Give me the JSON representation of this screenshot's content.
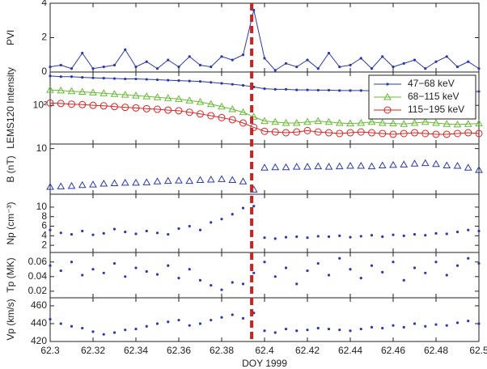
{
  "chart_data": [
    {
      "type": "line",
      "ylabel": "PVI",
      "xlim": [
        62.3,
        62.5
      ],
      "ylim": [
        0,
        4
      ],
      "yticks": [
        0,
        2,
        4
      ],
      "x": [
        62.3,
        62.305,
        62.31,
        62.315,
        62.32,
        62.325,
        62.33,
        62.335,
        62.34,
        62.345,
        62.35,
        62.355,
        62.36,
        62.365,
        62.37,
        62.375,
        62.38,
        62.385,
        62.39,
        62.395,
        62.4,
        62.405,
        62.41,
        62.415,
        62.42,
        62.425,
        62.43,
        62.435,
        62.44,
        62.445,
        62.45,
        62.455,
        62.46,
        62.465,
        62.47,
        62.475,
        62.48,
        62.485,
        62.49,
        62.495,
        62.5
      ],
      "series": [
        {
          "color": "#2a3aa8",
          "marker": "dot",
          "values": [
            0.3,
            0.4,
            0.2,
            1.1,
            0.2,
            0.3,
            0.4,
            1.3,
            0.3,
            0.6,
            0.2,
            0.7,
            0.3,
            0.9,
            0.4,
            0.3,
            0.9,
            0.7,
            1.0,
            3.6,
            0.8,
            0.1,
            0.5,
            0.3,
            0.7,
            0.2,
            1.1,
            0.3,
            0.4,
            0.8,
            0.2,
            0.9,
            0.3,
            0.5,
            0.7,
            0.2,
            0.6,
            0.9,
            0.3,
            0.6,
            0.2
          ]
        }
      ]
    },
    {
      "type": "line",
      "ylabel": "LEMS120 Intensity",
      "yscale": "log",
      "xlim": [
        62.3,
        62.5
      ],
      "ylim": [
        20,
        400
      ],
      "yticks": [
        {
          "value": 100,
          "label": "10²"
        }
      ],
      "legend": "upper right",
      "x": [
        62.3,
        62.305,
        62.31,
        62.315,
        62.32,
        62.325,
        62.33,
        62.335,
        62.34,
        62.345,
        62.35,
        62.355,
        62.36,
        62.365,
        62.37,
        62.375,
        62.38,
        62.385,
        62.39,
        62.395,
        62.4,
        62.405,
        62.41,
        62.415,
        62.42,
        62.425,
        62.43,
        62.435,
        62.44,
        62.445,
        62.45,
        62.455,
        62.46,
        62.465,
        62.47,
        62.475,
        62.48,
        62.485,
        62.49,
        62.495,
        62.5
      ],
      "series": [
        {
          "name": "47−68 keV",
          "color": "#2a3aa8",
          "marker": "dot",
          "values": [
            340,
            330,
            330,
            320,
            315,
            310,
            305,
            300,
            300,
            295,
            290,
            285,
            280,
            275,
            270,
            260,
            250,
            240,
            230,
            215,
            200,
            195,
            195,
            190,
            190,
            188,
            188,
            185,
            185,
            185,
            183,
            183,
            183,
            180,
            180,
            182,
            180,
            180,
            178,
            178,
            178
          ]
        },
        {
          "name": "68−115 keV",
          "color": "#66bb33",
          "marker": "triangle",
          "values": [
            190,
            185,
            180,
            175,
            170,
            165,
            160,
            155,
            150,
            145,
            140,
            135,
            130,
            122,
            115,
            105,
            95,
            85,
            75,
            62,
            52,
            50,
            48,
            48,
            50,
            52,
            50,
            48,
            47,
            48,
            50,
            48,
            47,
            46,
            48,
            50,
            48,
            46,
            45,
            46,
            47
          ]
        },
        {
          "name": "115−195 keV",
          "color": "#dd2222",
          "marker": "circle",
          "values": [
            110,
            108,
            105,
            103,
            100,
            98,
            95,
            92,
            90,
            87,
            85,
            82,
            80,
            75,
            70,
            65,
            60,
            55,
            48,
            40,
            34,
            33,
            32,
            33,
            35,
            33,
            32,
            31,
            32,
            33,
            32,
            31,
            30,
            31,
            32,
            31,
            30,
            30,
            31,
            32,
            31
          ]
        }
      ]
    },
    {
      "type": "scatter",
      "ylabel": "B (nT)",
      "xlim": [
        62.3,
        62.5
      ],
      "ylim": [
        0,
        11
      ],
      "yticks": [
        10
      ],
      "x": [
        62.3,
        62.305,
        62.31,
        62.315,
        62.32,
        62.325,
        62.33,
        62.335,
        62.34,
        62.345,
        62.35,
        62.355,
        62.36,
        62.365,
        62.37,
        62.375,
        62.38,
        62.385,
        62.39,
        62.395,
        62.4,
        62.405,
        62.41,
        62.415,
        62.42,
        62.425,
        62.43,
        62.435,
        62.44,
        62.445,
        62.45,
        62.455,
        62.46,
        62.465,
        62.47,
        62.475,
        62.48,
        62.485,
        62.49,
        62.495,
        62.5
      ],
      "series": [
        {
          "color": "#2a3aa8",
          "marker": "triangle",
          "values": [
            1.6,
            1.7,
            1.8,
            2.0,
            2.1,
            2.3,
            2.4,
            2.5,
            2.5,
            2.6,
            2.8,
            2.9,
            3.0,
            2.9,
            3.1,
            3.2,
            3.3,
            3.1,
            2.8,
            1.0,
            5.8,
            5.9,
            5.9,
            6.0,
            6.0,
            6.1,
            6.0,
            6.1,
            6.2,
            6.2,
            6.1,
            6.3,
            6.4,
            6.5,
            6.7,
            6.8,
            6.6,
            6.3,
            6.2,
            5.8,
            5.3
          ]
        }
      ]
    },
    {
      "type": "scatter",
      "ylabel": "Np (cm⁻³)",
      "xlim": [
        62.3,
        62.5
      ],
      "ylim": [
        0.5,
        12.7
      ],
      "yticks": [
        2,
        4,
        6,
        8,
        10
      ],
      "x": [
        62.3,
        62.305,
        62.31,
        62.315,
        62.32,
        62.325,
        62.33,
        62.335,
        62.34,
        62.345,
        62.35,
        62.355,
        62.36,
        62.365,
        62.37,
        62.375,
        62.38,
        62.385,
        62.39,
        62.395,
        62.4,
        62.405,
        62.41,
        62.415,
        62.42,
        62.425,
        62.43,
        62.435,
        62.44,
        62.445,
        62.45,
        62.455,
        62.46,
        62.465,
        62.47,
        62.475,
        62.48,
        62.485,
        62.49,
        62.495,
        62.5
      ],
      "series": [
        {
          "color": "#2a3aa8",
          "marker": "dot",
          "values": [
            5.2,
            4.6,
            4.3,
            5.0,
            4.2,
            4.5,
            5.4,
            4.8,
            4.4,
            5.0,
            4.6,
            4.3,
            5.5,
            6.0,
            5.2,
            6.8,
            7.5,
            8.5,
            9.8,
            10.2,
            3.6,
            3.4,
            3.7,
            3.8,
            3.6,
            3.9,
            3.8,
            4.0,
            3.7,
            3.9,
            4.1,
            3.8,
            4.2,
            4.0,
            4.3,
            4.1,
            4.5,
            4.4,
            4.8,
            5.2,
            5.0
          ]
        }
      ]
    },
    {
      "type": "scatter",
      "ylabel": "Tp (MK)",
      "xlim": [
        62.3,
        62.5
      ],
      "ylim": [
        0.011,
        0.073
      ],
      "yticks": [
        0.02,
        0.04,
        0.06
      ],
      "x": [
        62.3,
        62.305,
        62.31,
        62.315,
        62.32,
        62.325,
        62.33,
        62.335,
        62.34,
        62.345,
        62.35,
        62.355,
        62.36,
        62.365,
        62.37,
        62.375,
        62.38,
        62.385,
        62.39,
        62.395,
        62.4,
        62.405,
        62.41,
        62.415,
        62.42,
        62.425,
        62.43,
        62.435,
        62.44,
        62.445,
        62.45,
        62.455,
        62.46,
        62.465,
        62.47,
        62.475,
        62.48,
        62.485,
        62.49,
        62.495,
        62.5
      ],
      "series": [
        {
          "color": "#2a3aa8",
          "marker": "dot",
          "values": [
            0.055,
            0.048,
            0.06,
            0.042,
            0.05,
            0.045,
            0.058,
            0.04,
            0.052,
            0.047,
            0.043,
            0.055,
            0.038,
            0.05,
            0.035,
            0.028,
            0.022,
            0.032,
            0.03,
            0.045,
            0.06,
            0.04,
            0.052,
            0.03,
            0.048,
            0.058,
            0.042,
            0.065,
            0.05,
            0.038,
            0.055,
            0.046,
            0.06,
            0.035,
            0.052,
            0.045,
            0.06,
            0.042,
            0.055,
            0.065,
            0.058
          ]
        }
      ]
    },
    {
      "type": "scatter",
      "ylabel": "Vp (km/s)",
      "xlabel": "DOY 1999",
      "xlim": [
        62.3,
        62.5
      ],
      "ylim": [
        420,
        469
      ],
      "yticks": [
        420,
        440,
        460
      ],
      "xticks": [
        62.3,
        62.32,
        62.34,
        62.36,
        62.38,
        62.4,
        62.42,
        62.44,
        62.46,
        62.48,
        62.5
      ],
      "x": [
        62.3,
        62.305,
        62.31,
        62.315,
        62.32,
        62.325,
        62.33,
        62.335,
        62.34,
        62.345,
        62.35,
        62.355,
        62.36,
        62.365,
        62.37,
        62.375,
        62.38,
        62.385,
        62.39,
        62.395,
        62.4,
        62.405,
        62.41,
        62.415,
        62.42,
        62.425,
        62.43,
        62.435,
        62.44,
        62.445,
        62.45,
        62.455,
        62.46,
        62.465,
        62.47,
        62.475,
        62.48,
        62.485,
        62.49,
        62.495,
        62.5
      ],
      "series": [
        {
          "color": "#2a3aa8",
          "marker": "dot",
          "values": [
            445,
            440,
            437,
            435,
            431,
            428,
            430,
            433,
            434,
            437,
            440,
            442,
            444,
            438,
            440,
            444,
            447,
            450,
            446,
            452,
            432,
            430,
            434,
            432,
            433,
            435,
            434,
            433,
            432,
            434,
            436,
            435,
            438,
            436,
            440,
            437,
            439,
            438,
            441,
            443,
            440
          ]
        }
      ]
    }
  ],
  "event_line": {
    "x": 62.394,
    "color": "#cc2222"
  }
}
